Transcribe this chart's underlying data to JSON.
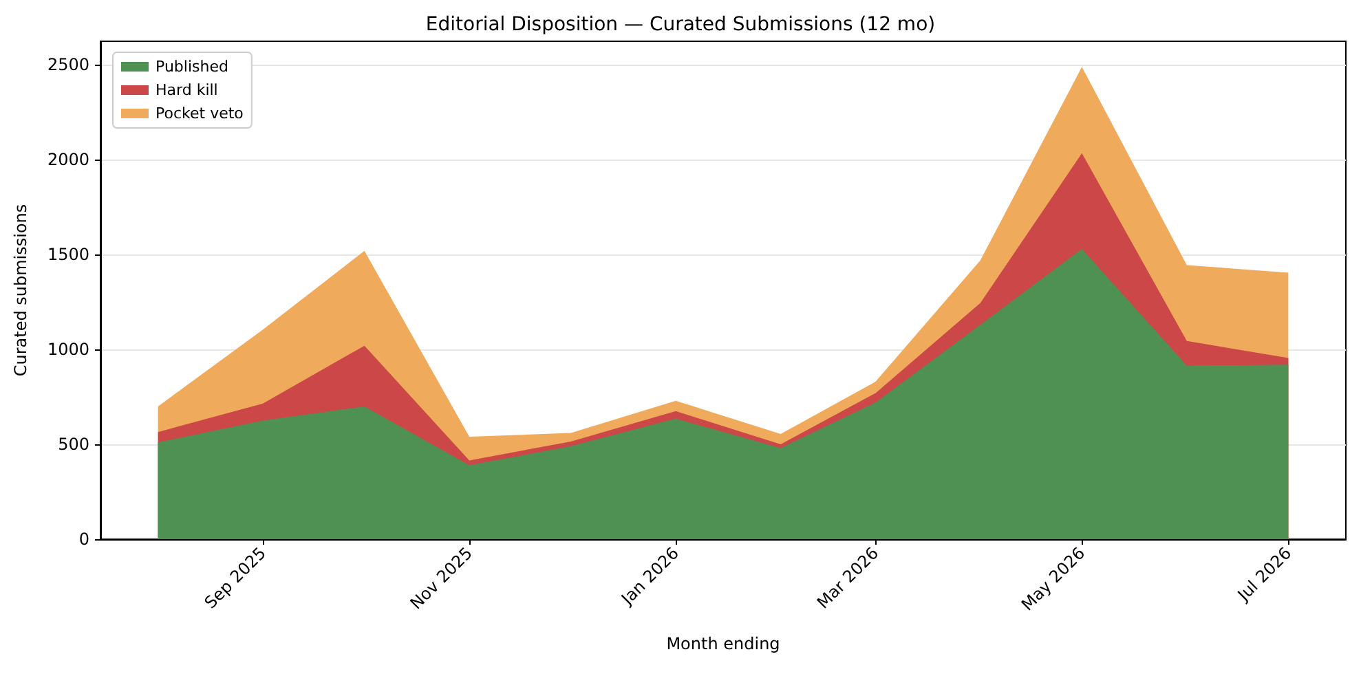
{
  "chart_data": {
    "type": "area",
    "title": "Editorial Disposition — Curated Submissions (12 mo)",
    "xlabel": "Month ending",
    "ylabel": "Curated submissions",
    "x": [
      "2025-08",
      "2025-09",
      "2025-10",
      "2025-11",
      "2025-12",
      "2026-01",
      "2026-02",
      "2026-03",
      "2026-04",
      "2026-05",
      "2026-06",
      "2026-07"
    ],
    "stacked": true,
    "series": [
      {
        "name": "Published",
        "color": "#4e9153",
        "values": [
          510,
          625,
          700,
          390,
          490,
          635,
          480,
          720,
          1130,
          1530,
          915,
          920
        ]
      },
      {
        "name": "Hard kill",
        "color": "#cc4848",
        "values": [
          55,
          90,
          320,
          25,
          25,
          40,
          20,
          50,
          115,
          505,
          130,
          35
        ]
      },
      {
        "name": "Pocket veto",
        "color": "#f0aa5c",
        "values": [
          135,
          390,
          500,
          125,
          45,
          55,
          55,
          60,
          225,
          455,
          400,
          450
        ]
      }
    ],
    "xlim": [
      "2025-07-15",
      "2026-07-18"
    ],
    "xticks": [
      {
        "value": "2025-09",
        "label": "Sep 2025"
      },
      {
        "value": "2025-11",
        "label": "Nov 2025"
      },
      {
        "value": "2026-01",
        "label": "Jan 2026"
      },
      {
        "value": "2026-03",
        "label": "Mar 2026"
      },
      {
        "value": "2026-05",
        "label": "May 2026"
      },
      {
        "value": "2026-07",
        "label": "Jul 2026"
      }
    ],
    "ylim": [
      0,
      2625
    ],
    "yticks": [
      0,
      500,
      1000,
      1500,
      2000,
      2500
    ],
    "grid": "y",
    "legend": "top left"
  }
}
